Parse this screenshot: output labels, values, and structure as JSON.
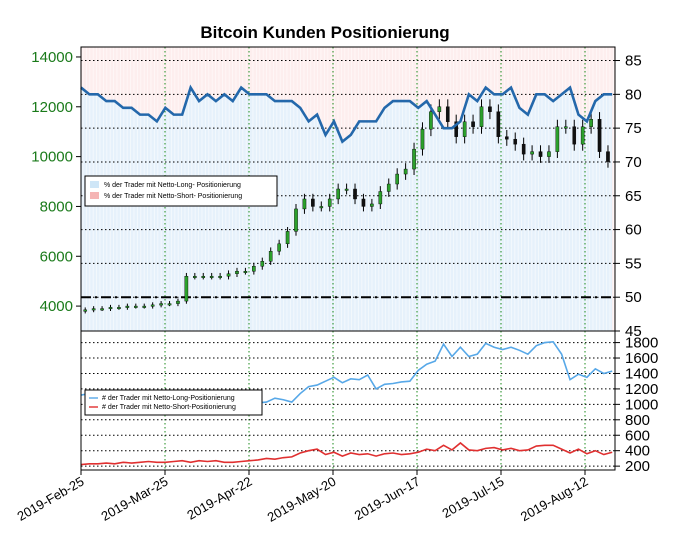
{
  "chart_data": [
    {
      "type": "line",
      "title": "Bitcoin Kunden Positionierung",
      "left_axis": {
        "ylim": [
          3000,
          14400
        ],
        "ticks": [
          "4000",
          "6000",
          "8000",
          "10000",
          "12000",
          "14000"
        ],
        "tick_values": [
          4000,
          6000,
          8000,
          10000,
          12000,
          14000
        ],
        "color": "#1a7a1a"
      },
      "right_axis": {
        "ylim": [
          45,
          87
        ],
        "ticks": [
          "45",
          "50",
          "55",
          "60",
          "65",
          "70",
          "75",
          "80",
          "85"
        ],
        "tick_values": [
          45,
          50,
          55,
          60,
          65,
          70,
          75,
          80,
          85
        ]
      },
      "x_ticks": [
        "2019-Feb-25",
        "2019-Mar-25",
        "2019-Apr-22",
        "2019-May-20",
        "2019-Jun-17",
        "2019-Jul-15",
        "2019-Aug-12"
      ],
      "x_range_days": [
        0,
        190
      ],
      "grid": true,
      "legend": {
        "placement": "middle-left",
        "entries": [
          {
            "label": "% der Trader mit Netto-Long- Positionierung",
            "color": "#cfe6f7"
          },
          {
            "label": "% der Trader mit Netto-Short- Positionierung",
            "color": "#f5b5b5"
          }
        ]
      },
      "reference_line": {
        "value": 50,
        "style": "dash-dot",
        "color": "#000000"
      },
      "long_percent": {
        "color": "#2468ab",
        "days": [
          0,
          3,
          6,
          9,
          12,
          15,
          18,
          21,
          24,
          27,
          30,
          33,
          36,
          39,
          42,
          45,
          48,
          51,
          54,
          57,
          60,
          63,
          66,
          69,
          72,
          75,
          78,
          81,
          84,
          87,
          90,
          93,
          96,
          99,
          102,
          105,
          108,
          111,
          114,
          117,
          120,
          123,
          126,
          129,
          132,
          135,
          138,
          141,
          144,
          147,
          150,
          153,
          156,
          159,
          162,
          165,
          168,
          171,
          174,
          177,
          180,
          183,
          186,
          189
        ],
        "values": [
          81,
          80,
          80,
          79,
          79,
          78,
          78,
          77,
          77,
          76,
          78,
          77,
          77,
          81,
          79,
          80,
          79,
          80,
          79,
          81,
          80,
          80,
          80,
          79,
          79,
          79,
          78,
          76,
          77,
          74,
          76,
          73,
          74,
          76,
          76,
          76,
          78,
          79,
          79,
          79,
          78,
          79,
          77,
          75,
          75,
          76,
          80,
          79,
          81,
          80,
          80,
          81,
          78,
          77,
          80,
          80,
          79,
          80,
          81,
          77,
          76,
          79,
          80,
          80
        ]
      },
      "price": {
        "color": "#000000",
        "days": [
          0,
          3,
          6,
          9,
          12,
          15,
          18,
          21,
          24,
          27,
          30,
          33,
          36,
          39,
          42,
          45,
          48,
          51,
          54,
          57,
          60,
          63,
          66,
          69,
          72,
          75,
          78,
          81,
          84,
          87,
          90,
          93,
          96,
          99,
          102,
          105,
          108,
          111,
          114,
          117,
          120,
          123,
          126,
          129,
          132,
          135,
          138,
          141,
          144,
          147,
          150,
          153,
          156,
          159,
          162,
          165,
          168,
          171,
          174,
          177,
          180,
          183,
          186,
          189
        ],
        "values": [
          3800,
          3850,
          3900,
          3900,
          3950,
          3950,
          4000,
          4000,
          4000,
          4050,
          4100,
          4100,
          4200,
          5200,
          5200,
          5200,
          5200,
          5200,
          5300,
          5400,
          5400,
          5600,
          5800,
          6200,
          6500,
          7000,
          7900,
          8300,
          8000,
          8000,
          8300,
          8700,
          8700,
          8300,
          8000,
          8100,
          8600,
          8900,
          9300,
          9500,
          10300,
          11100,
          11800,
          12000,
          11400,
          10800,
          11400,
          11200,
          12000,
          11800,
          10800,
          10700,
          10500,
          10100,
          10200,
          10000,
          10200,
          11200,
          11200,
          10500,
          11200,
          11500,
          10200,
          9800
        ]
      }
    },
    {
      "type": "line",
      "right_axis": {
        "ylim": [
          150,
          1950
        ],
        "ticks": [
          "200",
          "400",
          "600",
          "800",
          "1000",
          "1200",
          "1400",
          "1600",
          "1800"
        ],
        "tick_values": [
          200,
          400,
          600,
          800,
          1000,
          1200,
          1400,
          1600,
          1800
        ]
      },
      "legend": {
        "placement": "left",
        "entries": [
          {
            "label": "# der Trader mit Netto-Long-Positionierung",
            "color": "#57a8e8"
          },
          {
            "label": "# der Trader mit Netto-Short-Positionierung",
            "color": "#e03030"
          }
        ]
      },
      "series": [
        {
          "name": "# der Trader mit Netto-Long-Positionierung",
          "color": "#57a8e8",
          "days": [
            0,
            3,
            6,
            9,
            12,
            15,
            18,
            21,
            24,
            27,
            30,
            33,
            36,
            39,
            42,
            45,
            48,
            51,
            54,
            57,
            60,
            63,
            66,
            69,
            72,
            75,
            78,
            81,
            84,
            87,
            90,
            93,
            96,
            99,
            102,
            105,
            108,
            111,
            114,
            117,
            120,
            123,
            126,
            129,
            132,
            135,
            138,
            141,
            144,
            147,
            150,
            153,
            156,
            159,
            162,
            165,
            168,
            171,
            174,
            177,
            180,
            183,
            186,
            189
          ],
          "values": [
            1120,
            1140,
            1100,
            1090,
            1080,
            1080,
            1050,
            1050,
            1060,
            1040,
            1050,
            1070,
            1060,
            1090,
            1120,
            1050,
            1070,
            1000,
            1010,
            1020,
            1050,
            1020,
            1030,
            1080,
            1060,
            1030,
            1140,
            1230,
            1250,
            1300,
            1350,
            1280,
            1330,
            1320,
            1380,
            1200,
            1260,
            1270,
            1290,
            1300,
            1440,
            1520,
            1560,
            1780,
            1620,
            1740,
            1620,
            1650,
            1790,
            1740,
            1710,
            1740,
            1700,
            1650,
            1760,
            1800,
            1810,
            1650,
            1320,
            1390,
            1350,
            1460,
            1400,
            1430
          ]
        },
        {
          "name": "# der Trader mit Netto-Short-Positionierung",
          "color": "#e03030",
          "days": [
            0,
            3,
            6,
            9,
            12,
            15,
            18,
            21,
            24,
            27,
            30,
            33,
            36,
            39,
            42,
            45,
            48,
            51,
            54,
            57,
            60,
            63,
            66,
            69,
            72,
            75,
            78,
            81,
            84,
            87,
            90,
            93,
            96,
            99,
            102,
            105,
            108,
            111,
            114,
            117,
            120,
            123,
            126,
            129,
            132,
            135,
            138,
            141,
            144,
            147,
            150,
            153,
            156,
            159,
            162,
            165,
            168,
            171,
            174,
            177,
            180,
            183,
            186,
            189
          ],
          "values": [
            220,
            230,
            230,
            240,
            230,
            250,
            240,
            250,
            260,
            250,
            250,
            260,
            270,
            250,
            270,
            260,
            270,
            250,
            250,
            260,
            270,
            280,
            300,
            290,
            310,
            320,
            370,
            400,
            420,
            350,
            380,
            330,
            370,
            350,
            360,
            330,
            360,
            370,
            350,
            360,
            380,
            420,
            400,
            470,
            410,
            500,
            410,
            400,
            430,
            440,
            410,
            430,
            400,
            410,
            460,
            470,
            470,
            420,
            370,
            420,
            360,
            400,
            350,
            380
          ]
        }
      ]
    }
  ]
}
